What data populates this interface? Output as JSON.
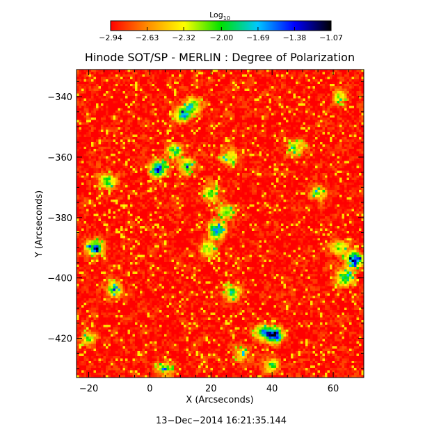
{
  "chart_data": {
    "type": "heatmap",
    "title": "Hinode SOT/SP - MERLIN : Degree of Polarization",
    "xlabel": "X (Arcseconds)",
    "ylabel": "Y (Arcseconds)",
    "xlim": [
      -24,
      70
    ],
    "ylim": [
      -433,
      -331
    ],
    "x_ticks": [
      -20,
      0,
      20,
      40,
      60
    ],
    "y_ticks": [
      -340,
      -360,
      -380,
      -400,
      -420
    ],
    "x_tick_labels": [
      "−20",
      "0",
      "20",
      "40",
      "60"
    ],
    "y_tick_labels": [
      "−340",
      "−360",
      "−380",
      "−400",
      "−420"
    ],
    "colorbar": {
      "label_main": "Log",
      "label_sub": "10",
      "min": -2.94,
      "max": -1.07,
      "ticks": [
        -2.94,
        -2.63,
        -2.32,
        -2.0,
        -1.69,
        -1.38,
        -1.07
      ],
      "tick_labels": [
        "−2.94",
        "−2.63",
        "−2.32",
        "−2.00",
        "−1.69",
        "−1.38",
        "−1.07"
      ],
      "colormap": [
        "#ff0000",
        "#ff8c00",
        "#ffff00",
        "#00e000",
        "#00c8ff",
        "#0000ff",
        "#000000"
      ]
    },
    "background_value": -2.9,
    "enhancements": [
      {
        "x": 3,
        "y": -364,
        "value": -1.4
      },
      {
        "x": 8,
        "y": -358,
        "value": -1.95
      },
      {
        "x": 12,
        "y": -363,
        "value": -1.9
      },
      {
        "x": 11,
        "y": -346,
        "value": -1.7
      },
      {
        "x": 14,
        "y": -343,
        "value": -1.9
      },
      {
        "x": -14,
        "y": -368,
        "value": -1.85
      },
      {
        "x": -18,
        "y": -390,
        "value": -1.55
      },
      {
        "x": 22,
        "y": -384,
        "value": -1.55
      },
      {
        "x": 25,
        "y": -378,
        "value": -2.05
      },
      {
        "x": 20,
        "y": -372,
        "value": -2.1
      },
      {
        "x": 19,
        "y": -390,
        "value": -2.0
      },
      {
        "x": 41,
        "y": -419,
        "value": -1.3
      },
      {
        "x": 37,
        "y": -418,
        "value": -1.8
      },
      {
        "x": 67,
        "y": -394,
        "value": -1.3
      },
      {
        "x": 64,
        "y": -400,
        "value": -1.6
      },
      {
        "x": 62,
        "y": -390,
        "value": -2.0
      },
      {
        "x": 27,
        "y": -405,
        "value": -1.95
      },
      {
        "x": -12,
        "y": -404,
        "value": -1.95
      },
      {
        "x": 26,
        "y": -360,
        "value": -2.1
      },
      {
        "x": 40,
        "y": -429,
        "value": -2.05
      },
      {
        "x": 5,
        "y": -430,
        "value": -2.1
      },
      {
        "x": 48,
        "y": -357,
        "value": -2.2
      },
      {
        "x": 62,
        "y": -340,
        "value": -2.3
      },
      {
        "x": -20,
        "y": -420,
        "value": -2.2
      },
      {
        "x": 55,
        "y": -372,
        "value": -2.2
      },
      {
        "x": 30,
        "y": -425,
        "value": -2.2
      }
    ]
  },
  "timestamp": "13−Dec−2014 16:21:35.144"
}
